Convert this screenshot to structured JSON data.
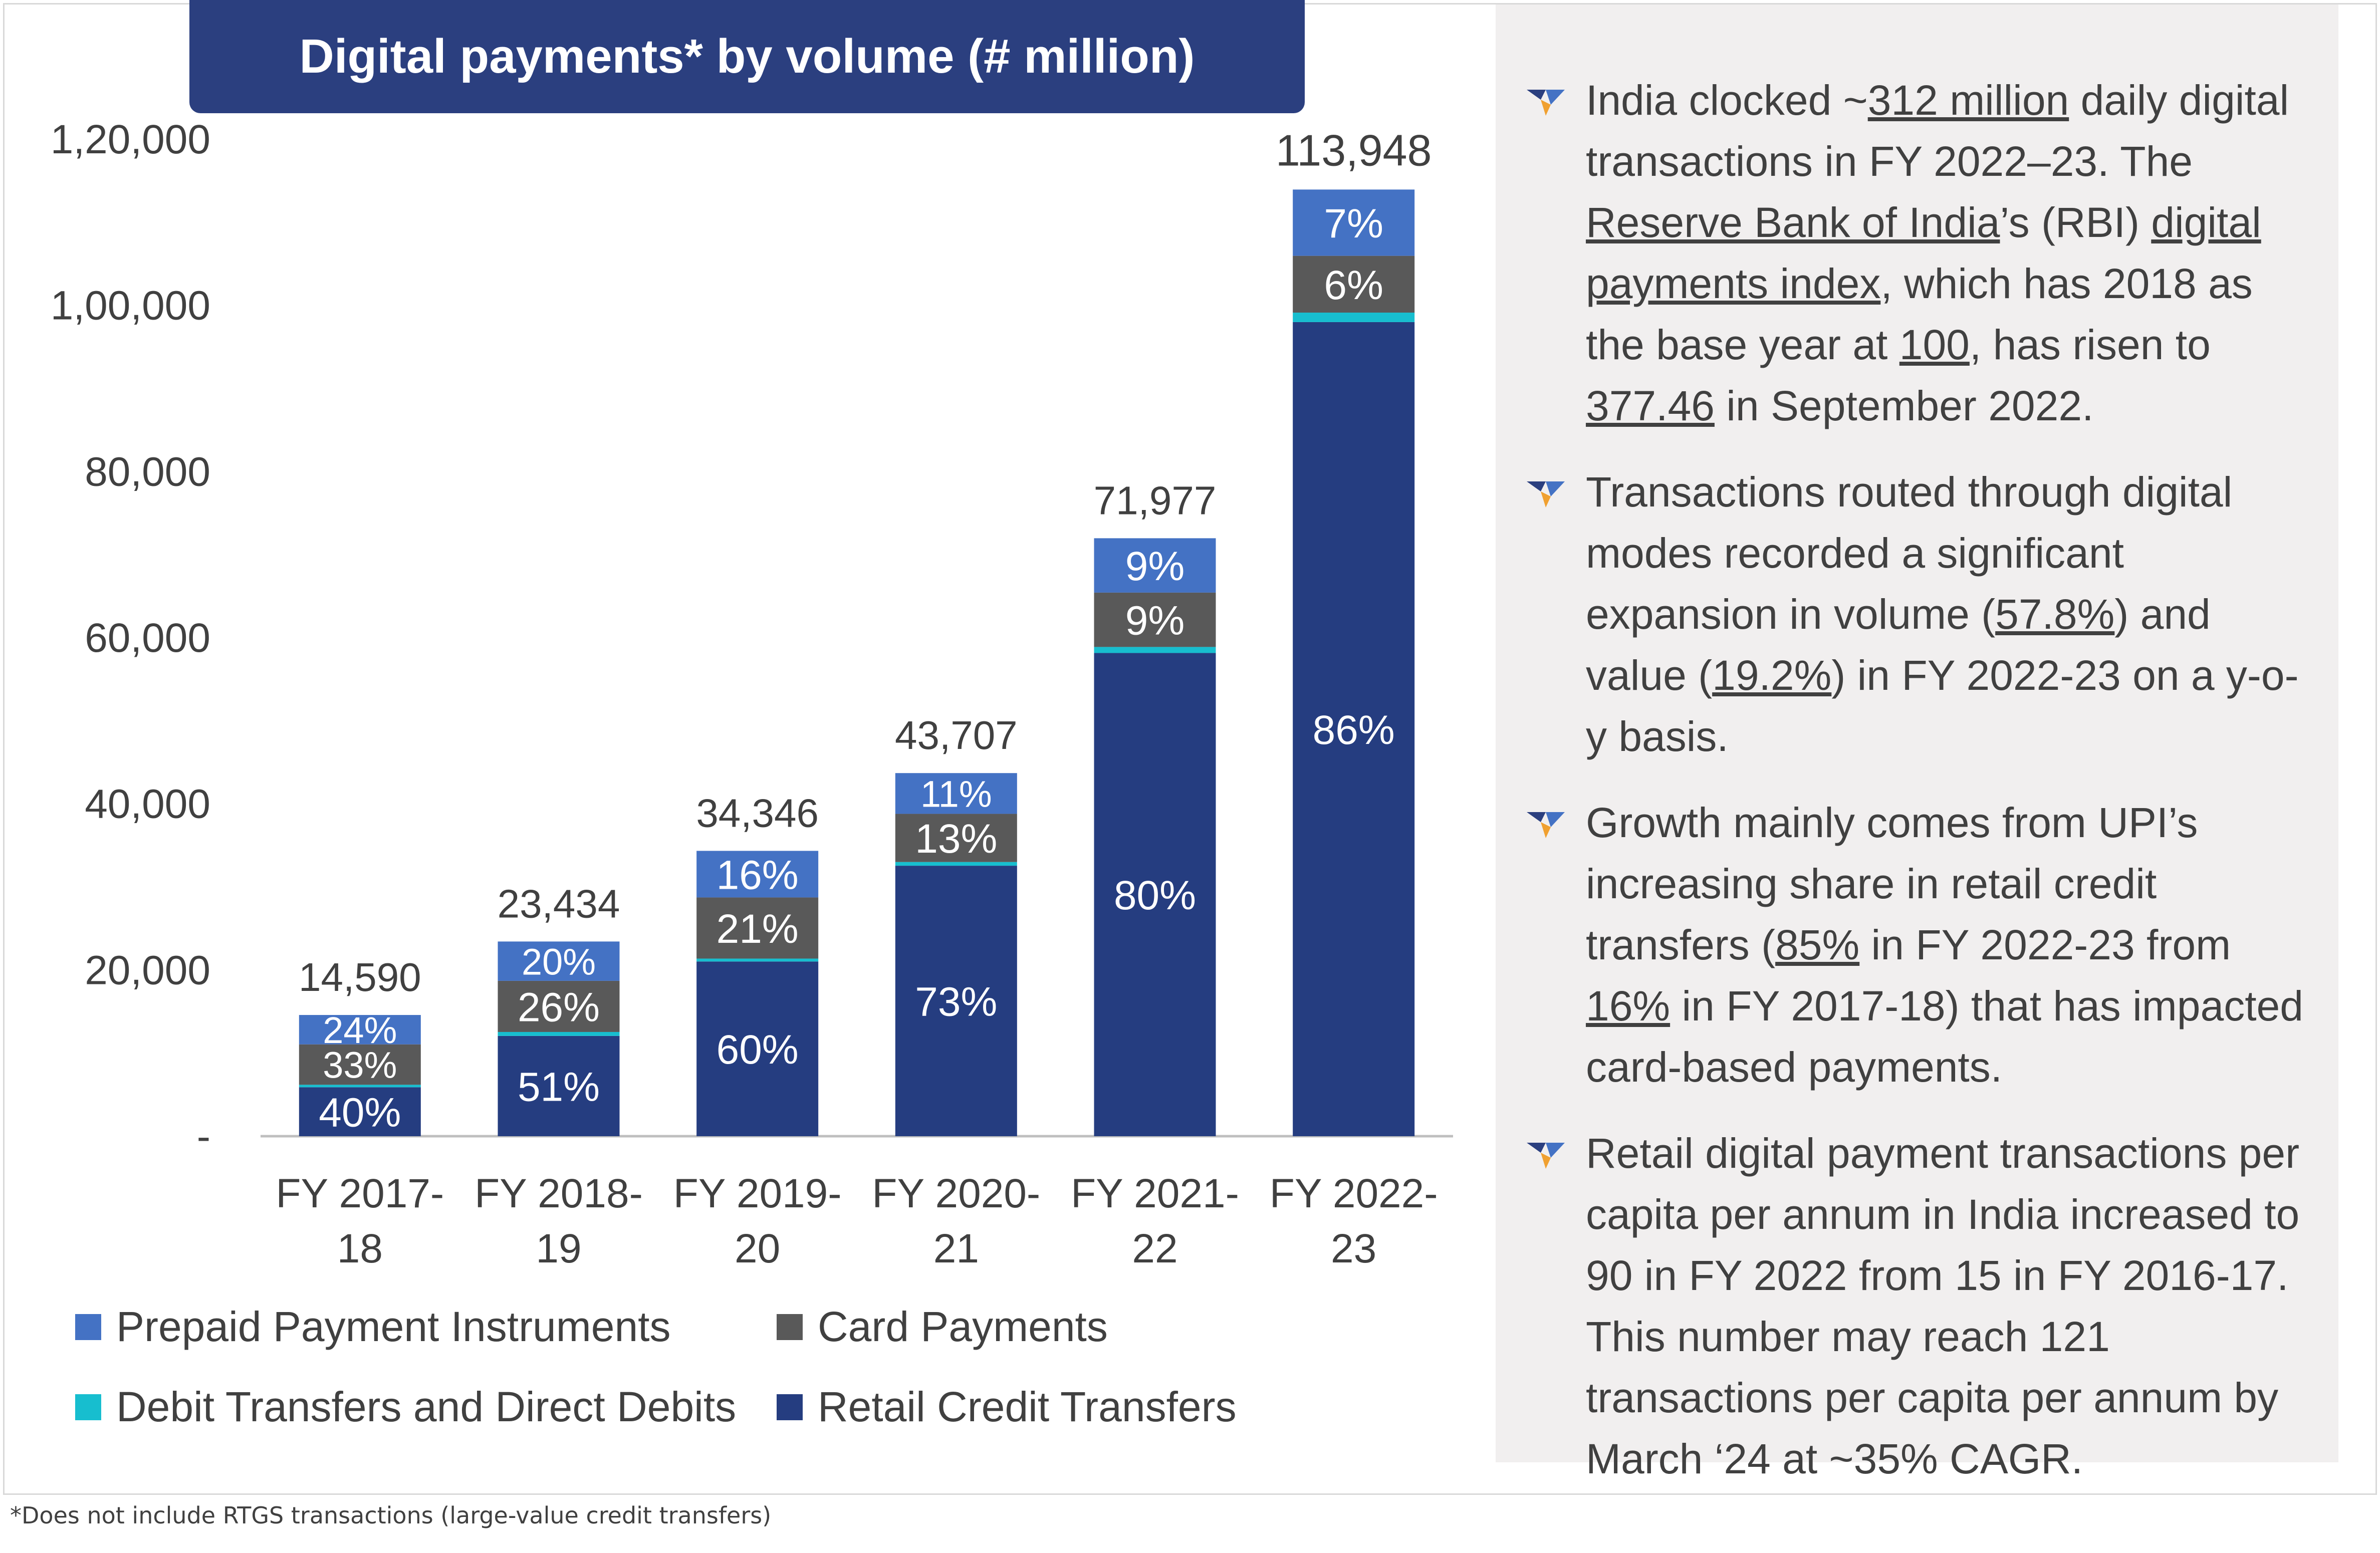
{
  "header": {
    "title": "Digital payments* by volume (# million)"
  },
  "colors": {
    "prepaid": "#4472c4",
    "card": "#595959",
    "debit": "#17becf",
    "retail": "#253d80"
  },
  "chart_data": {
    "type": "bar",
    "stacked": true,
    "title": "Digital payments* by volume (# million)",
    "categories": [
      "FY 2017-18",
      "FY 2018-19",
      "FY 2019-20",
      "FY 2020-21",
      "FY 2021-22",
      "FY 2022-23"
    ],
    "category_lines": [
      [
        "FY 2017-",
        "18"
      ],
      [
        "FY 2018-",
        "19"
      ],
      [
        "FY 2019-",
        "20"
      ],
      [
        "FY 2020-",
        "21"
      ],
      [
        "FY 2021-",
        "22"
      ],
      [
        "FY 2022-",
        "23"
      ]
    ],
    "totals": [
      14590,
      23434,
      34346,
      43707,
      71977,
      113948
    ],
    "total_labels": [
      "14,590",
      "23,434",
      "34,346",
      "43,707",
      "71,977",
      "113,948"
    ],
    "series": [
      {
        "name": "Retail Credit Transfers",
        "key": "retail",
        "share_pct": [
          40,
          51,
          60,
          73,
          80,
          86
        ],
        "labels": [
          "40%",
          "51%",
          "60%",
          "73%",
          "80%",
          "86%"
        ]
      },
      {
        "name": "Debit Transfers and Direct Debits",
        "key": "debit",
        "share_pct": [
          2,
          2,
          1,
          1,
          1,
          1
        ],
        "labels": [
          "",
          "",
          "",
          "",
          "",
          ""
        ]
      },
      {
        "name": "Card Payments",
        "key": "card",
        "share_pct": [
          33,
          26,
          21,
          13,
          9,
          6
        ],
        "labels": [
          "33%",
          "26%",
          "21%",
          "13%",
          "9%",
          "6%"
        ]
      },
      {
        "name": "Prepaid Payment Instruments",
        "key": "prepaid",
        "share_pct": [
          24,
          20,
          16,
          11,
          9,
          7
        ],
        "labels": [
          "24%",
          "20%",
          "16%",
          "11%",
          "9%",
          "7%"
        ]
      }
    ],
    "ylim": [
      0,
      120000
    ],
    "yticks": [
      0,
      20000,
      40000,
      60000,
      80000,
      100000,
      120000
    ],
    "ytick_labels": [
      "-",
      "20,000",
      "40,000",
      "60,000",
      "80,000",
      "1,00,000",
      "1,20,000"
    ],
    "grid": false,
    "legend": {
      "position": "bottom",
      "items": [
        {
          "key": "prepaid",
          "label": "Prepaid Payment Instruments"
        },
        {
          "key": "card",
          "label": "Card Payments"
        },
        {
          "key": "debit",
          "label": "Debit Transfers and Direct Debits"
        },
        {
          "key": "retail",
          "label": "Retail Credit Transfers"
        }
      ]
    }
  },
  "side_panel": {
    "bullets": [
      [
        {
          "t": "India clocked ~"
        },
        {
          "t": "312 million",
          "u": true
        },
        {
          "t": " daily digital transactions in FY 2022–23. The "
        },
        {
          "t": "Reserve Bank of India",
          "u": true
        },
        {
          "t": "’s (RBI) "
        },
        {
          "t": "digital payments index",
          "u": true
        },
        {
          "t": ", which has 2018 as the base year at "
        },
        {
          "t": "100",
          "u": true
        },
        {
          "t": ", has risen to "
        },
        {
          "t": "377.46",
          "u": true
        },
        {
          "t": " in September 2022."
        }
      ],
      [
        {
          "t": "Transactions routed through digital modes recorded a significant expansion in volume ("
        },
        {
          "t": "57.8%",
          "u": true
        },
        {
          "t": ") and value ("
        },
        {
          "t": "19.2%",
          "u": true
        },
        {
          "t": ") in FY 2022-23 on a y-o-y basis."
        }
      ],
      [
        {
          "t": "Growth mainly comes from UPI’s increasing share in retail credit transfers ("
        },
        {
          "t": "85%",
          "u": true
        },
        {
          "t": " in FY 2022-23 from "
        },
        {
          "t": "16%",
          "u": true
        },
        {
          "t": " in FY 2017-18) that has impacted card-based payments."
        }
      ],
      [
        {
          "t": "Retail digital payment transactions per capita per annum in India increased to 90 in FY 2022 from 15 in FY 2016-17. This number may reach 121 transactions per capita per annum by March ‘24 at ~35% CAGR."
        }
      ]
    ]
  },
  "footnote": "*Does not include RTGS transactions (large-value credit transfers)"
}
